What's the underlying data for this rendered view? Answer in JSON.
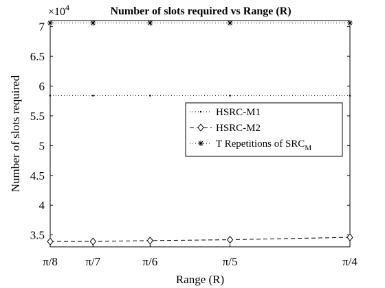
{
  "chart_data": {
    "type": "line",
    "title": "Number of slots required vs Range (R)",
    "xlabel": "Range (R)",
    "ylabel": "Number of slots required",
    "y_multiplier_base": "×10",
    "y_multiplier_exp": "4",
    "x_values": [
      0.3927,
      0.4488,
      0.5236,
      0.6283,
      0.7854
    ],
    "x_tick_labels": [
      "π/8",
      "π/7",
      "π/6",
      "π/5",
      "π/4"
    ],
    "xlim": [
      0.3927,
      0.7854
    ],
    "ylim": [
      3.3,
      7.1
    ],
    "y_ticks": [
      3.5,
      4,
      4.5,
      5,
      5.5,
      6,
      6.5,
      7
    ],
    "y_tick_labels": [
      "3.5",
      "4",
      "4.5",
      "5",
      "5.5",
      "6",
      "6.5",
      "7"
    ],
    "grid": false,
    "legend_position": "right",
    "series": [
      {
        "name": "HSRC-M1",
        "style": "dotted-point",
        "color": "#000000",
        "values": [
          5.84,
          5.84,
          5.84,
          5.84,
          5.84
        ]
      },
      {
        "name": "HSRC-M2",
        "style": "dashed-diamond",
        "color": "#000000",
        "values": [
          3.39,
          3.39,
          3.405,
          3.42,
          3.46
        ]
      },
      {
        "name_main": "T Repetitions of SRC",
        "name_sub": "M",
        "style": "dotted-star",
        "color": "#000000",
        "values": [
          7.06,
          7.06,
          7.06,
          7.06,
          7.06
        ]
      }
    ]
  }
}
